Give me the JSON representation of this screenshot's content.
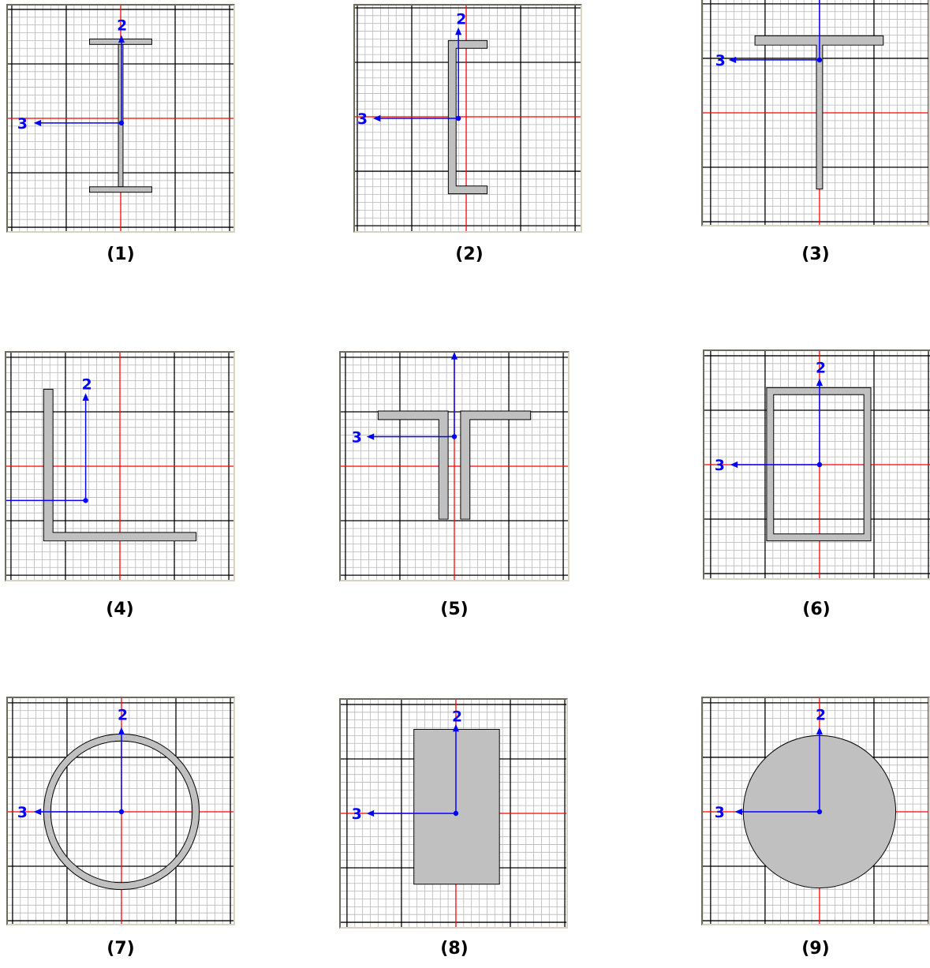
{
  "figures": [
    {
      "caption": "(1)",
      "shape": "i-section",
      "axis2_label": "2",
      "axis3_label": "3"
    },
    {
      "caption": "(2)",
      "shape": "channel-section",
      "axis2_label": "2",
      "axis3_label": "3"
    },
    {
      "caption": "(3)",
      "shape": "tee-section",
      "axis2_label": "",
      "axis3_label": "3"
    },
    {
      "caption": "(4)",
      "shape": "angle-section",
      "axis2_label": "2",
      "axis3_label": ""
    },
    {
      "caption": "(5)",
      "shape": "double-angle-section",
      "axis2_label": "",
      "axis3_label": "3"
    },
    {
      "caption": "(6)",
      "shape": "box-section",
      "axis2_label": "2",
      "axis3_label": "3"
    },
    {
      "caption": "(7)",
      "shape": "pipe-section",
      "axis2_label": "2",
      "axis3_label": "3"
    },
    {
      "caption": "(8)",
      "shape": "rectangular-section",
      "axis2_label": "2",
      "axis3_label": "3"
    },
    {
      "caption": "(9)",
      "shape": "circular-section",
      "axis2_label": "2",
      "axis3_label": "3"
    }
  ],
  "colors": {
    "minor_grid": "#b8b8b8",
    "major_grid": "#000000",
    "centerline": "#ff0000",
    "axis": "#0000ff",
    "section_fill": "#c0c0c0",
    "section_stroke": "#000000"
  }
}
